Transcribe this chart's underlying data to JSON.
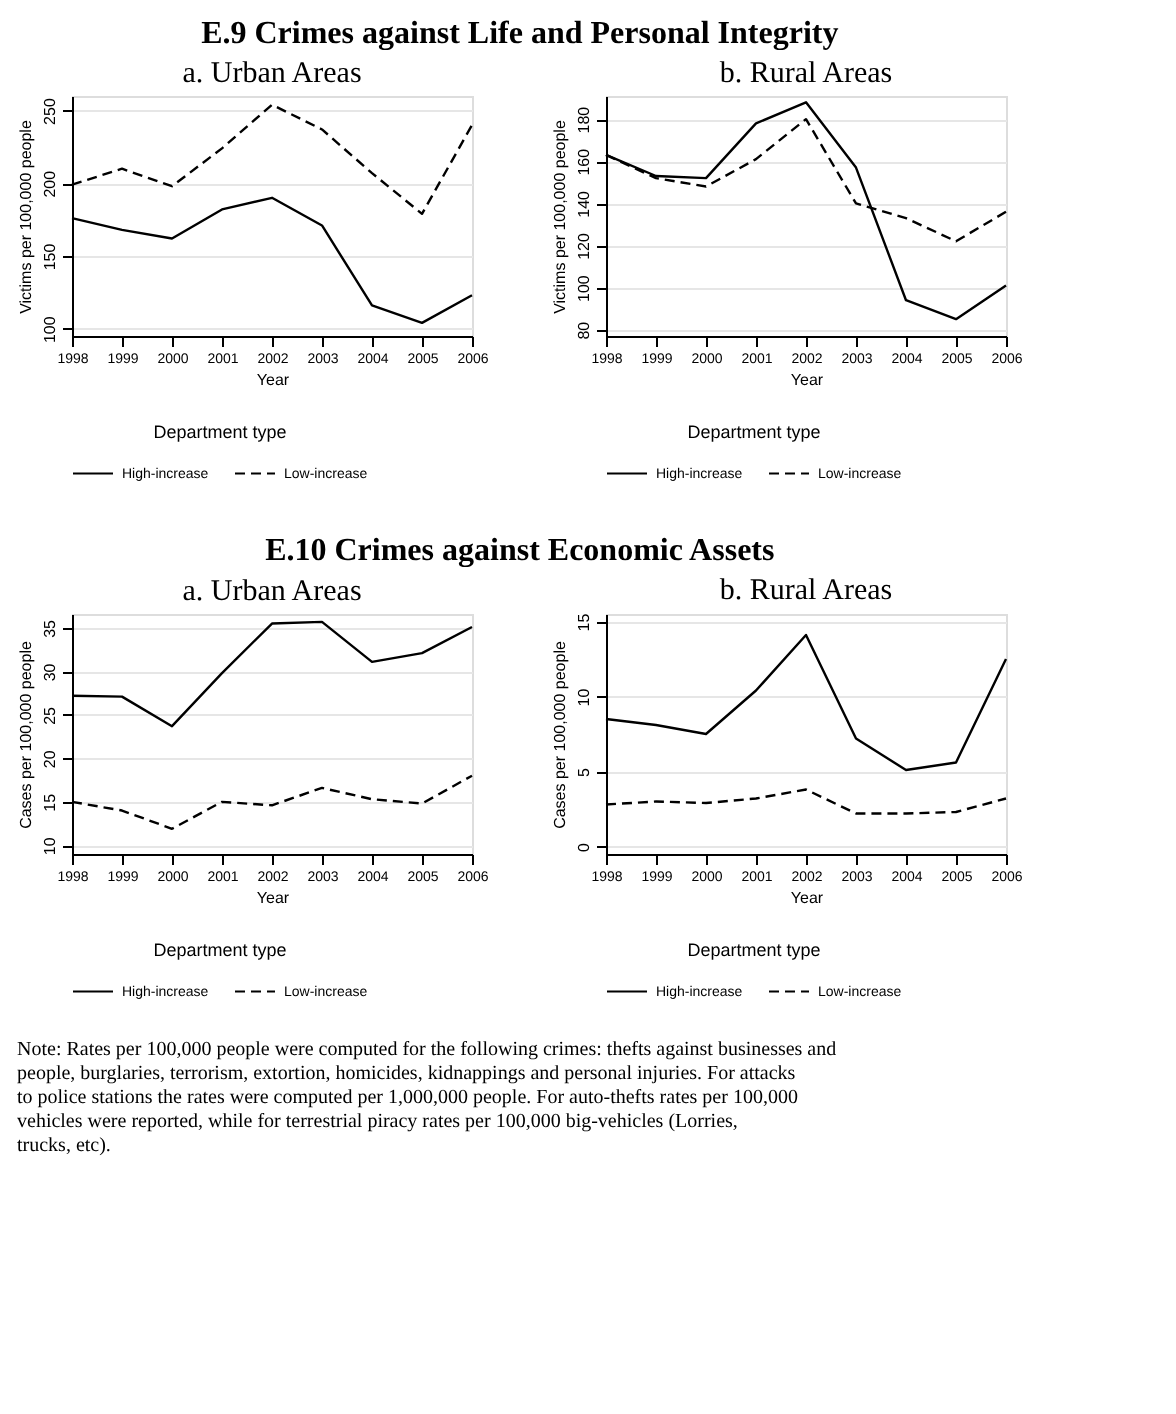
{
  "chart_data": [
    {
      "type": "line",
      "title": "a. Urban Areas",
      "annotations": [
        "E.9 Crimes against Life and Personal Integrity"
      ],
      "xlabel": "Year",
      "ylabel": "Victims per 100,000 people",
      "legend_title": "Department type",
      "legend": "bottom",
      "grid": "y",
      "x": [
        1998,
        1999,
        2000,
        2001,
        2002,
        2003,
        2004,
        2005,
        2006
      ],
      "xlim": [
        1998,
        2006
      ],
      "xticks": [
        1998,
        1999,
        2000,
        2001,
        2002,
        2003,
        2004,
        2005,
        2006
      ],
      "ylim": [
        95,
        260
      ],
      "yticks": [
        100,
        150,
        200,
        250
      ],
      "series": [
        {
          "name": "High-increase",
          "color": "#000000",
          "line_style": "solid",
          "values": [
            176,
            168,
            162,
            182,
            190,
            171,
            116,
            104,
            123
          ]
        },
        {
          "name": "Low-increase",
          "color": "#000000",
          "line_style": "dashed",
          "values": [
            199,
            210,
            198,
            224,
            254,
            237,
            207,
            179,
            240
          ]
        }
      ]
    },
    {
      "type": "line",
      "title": "b. Rural Areas",
      "xlabel": "Year",
      "ylabel": "Victims per 100,000 people",
      "legend_title": "Department type",
      "legend": "bottom",
      "grid": "y",
      "x": [
        1998,
        1999,
        2000,
        2001,
        2002,
        2003,
        2004,
        2005,
        2006
      ],
      "xlim": [
        1998,
        2006
      ],
      "xticks": [
        1998,
        1999,
        2000,
        2001,
        2002,
        2003,
        2004,
        2005,
        2006
      ],
      "ylim": [
        77,
        191
      ],
      "yticks": [
        80,
        100,
        120,
        140,
        160,
        180
      ],
      "series": [
        {
          "name": "High-increase",
          "color": "#000000",
          "line_style": "solid",
          "values": [
            163,
            153,
            152,
            178,
            188,
            157,
            94,
            85,
            101
          ]
        },
        {
          "name": "Low-increase",
          "color": "#000000",
          "line_style": "dashed",
          "values": [
            163,
            152,
            148,
            161,
            180,
            140,
            133,
            122,
            136
          ]
        }
      ]
    },
    {
      "type": "line",
      "title": "a. Urban Areas",
      "annotations": [
        "E.10 Crimes against Economic Assets"
      ],
      "xlabel": "Year",
      "ylabel": "Cases per 100,000 people",
      "legend_title": "Department type",
      "legend": "bottom",
      "grid": "y",
      "x": [
        1998,
        1999,
        2000,
        2001,
        2002,
        2003,
        2004,
        2005,
        2006
      ],
      "xlim": [
        1998,
        2006
      ],
      "xticks": [
        1998,
        1999,
        2000,
        2001,
        2002,
        2003,
        2004,
        2005,
        2006
      ],
      "ylim": [
        9,
        36.6
      ],
      "yticks": [
        10,
        15,
        20,
        25,
        30,
        35
      ],
      "series": [
        {
          "name": "High-increase",
          "color": "#000000",
          "line_style": "solid",
          "values": [
            27.2,
            27.1,
            23.7,
            29.8,
            35.5,
            35.7,
            31.1,
            32.1,
            35.1
          ]
        },
        {
          "name": "Low-increase",
          "color": "#000000",
          "line_style": "dashed",
          "values": [
            15,
            14,
            11.9,
            15,
            14.6,
            16.6,
            15.3,
            14.8,
            18
          ]
        }
      ]
    },
    {
      "type": "line",
      "title": "b. Rural Areas",
      "annotations": [
        "Note: Rates per 100,000 people were computed for the following crimes: thefts against businesses and people, burglaries, terrorism, extortion, homicides, kidnappings and personal injuries. For attacks to police stations the rates were computed per 1,000,000 people. For auto-thefts rates per 100,000 vehicles were reported, while for terrestrial piracy rates per 100,000 big-vehicles (Lorries, trucks, etc)."
      ],
      "xlabel": "Year",
      "ylabel": "Cases per 100,000 people",
      "legend_title": "Department type",
      "legend": "bottom",
      "grid": "y",
      "x": [
        1998,
        1999,
        2000,
        2001,
        2002,
        2003,
        2004,
        2005,
        2006
      ],
      "xlim": [
        1998,
        2006
      ],
      "xticks": [
        1998,
        1999,
        2000,
        2001,
        2002,
        2003,
        2004,
        2005,
        2006
      ],
      "ylim": [
        -0.5,
        15.5
      ],
      "yticks": [
        0,
        5,
        10,
        15
      ],
      "series": [
        {
          "name": "High-increase",
          "color": "#000000",
          "line_style": "solid",
          "values": [
            8.5,
            8.1,
            7.5,
            10.4,
            14.1,
            7.2,
            5.1,
            5.6,
            12.5
          ]
        },
        {
          "name": "Low-increase",
          "color": "#000000",
          "line_style": "dashed",
          "values": [
            2.8,
            3.0,
            2.9,
            3.2,
            3.8,
            2.2,
            2.2,
            2.3,
            3.2
          ]
        }
      ]
    }
  ]
}
